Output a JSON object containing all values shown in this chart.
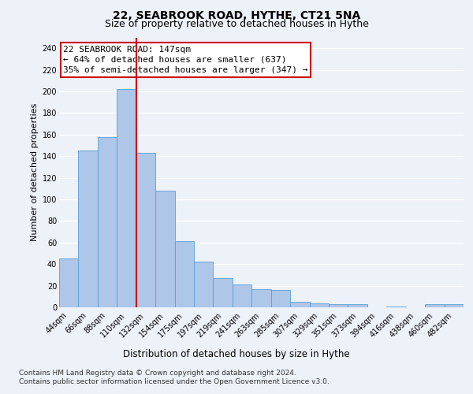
{
  "title1": "22, SEABROOK ROAD, HYTHE, CT21 5NA",
  "title2": "Size of property relative to detached houses in Hythe",
  "xlabel": "Distribution of detached houses by size in Hythe",
  "ylabel": "Number of detached properties",
  "footer1": "Contains HM Land Registry data © Crown copyright and database right 2024.",
  "footer2": "Contains public sector information licensed under the Open Government Licence v3.0.",
  "categories": [
    "44sqm",
    "66sqm",
    "88sqm",
    "110sqm",
    "132sqm",
    "154sqm",
    "175sqm",
    "197sqm",
    "219sqm",
    "241sqm",
    "263sqm",
    "285sqm",
    "307sqm",
    "329sqm",
    "351sqm",
    "373sqm",
    "394sqm",
    "416sqm",
    "438sqm",
    "460sqm",
    "482sqm"
  ],
  "values": [
    45,
    145,
    158,
    202,
    143,
    108,
    61,
    42,
    27,
    21,
    17,
    16,
    5,
    4,
    3,
    3,
    0,
    1,
    0,
    3,
    3
  ],
  "bar_color": "#aec6e8",
  "bar_edge_color": "#5a9fd4",
  "vline_x": 3.5,
  "vline_color": "#cc0000",
  "annotation_line1": "22 SEABROOK ROAD: 147sqm",
  "annotation_line2": "← 64% of detached houses are smaller (637)",
  "annotation_line3": "35% of semi-detached houses are larger (347) →",
  "annotation_box_color": "#cc0000",
  "ylim": [
    0,
    250
  ],
  "yticks": [
    0,
    20,
    40,
    60,
    80,
    100,
    120,
    140,
    160,
    180,
    200,
    220,
    240
  ],
  "background_color": "#edf1f8",
  "plot_bg_color": "#edf1f8",
  "grid_color": "#ffffff",
  "title1_fontsize": 10,
  "title2_fontsize": 9,
  "xlabel_fontsize": 8.5,
  "ylabel_fontsize": 8,
  "tick_fontsize": 7,
  "annotation_fontsize": 8,
  "footer_fontsize": 6.5
}
